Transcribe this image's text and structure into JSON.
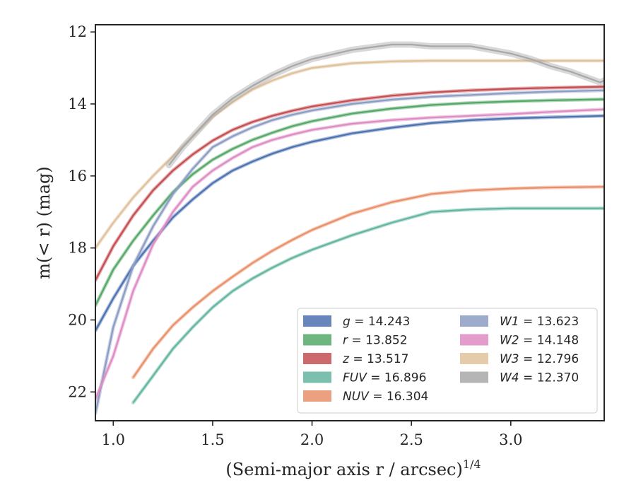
{
  "chart_data": {
    "type": "line",
    "xlabel": "(Semi-major axis r / arcsec)",
    "xlabel_sup": "1/4",
    "ylabel": "m(< r) (mag)",
    "xlim": [
      0.91,
      3.47
    ],
    "ylim": [
      22.8,
      11.8
    ],
    "y_inverted": true,
    "x_ticks": [
      "1.0",
      "1.5",
      "2.0",
      "2.5",
      "3.0"
    ],
    "y_ticks": [
      "12",
      "14",
      "16",
      "18",
      "20",
      "22"
    ],
    "legend_position": "lower-right",
    "legend_columns": 2,
    "series": [
      {
        "name": "g",
        "value": "14.243",
        "color": "#4c72b0",
        "x": [
          0.91,
          1.0,
          1.1,
          1.2,
          1.3,
          1.4,
          1.5,
          1.6,
          1.7,
          1.8,
          1.9,
          2.0,
          2.2,
          2.4,
          2.6,
          2.8,
          3.0,
          3.2,
          3.47
        ],
        "y": [
          20.3,
          19.4,
          18.5,
          17.8,
          17.15,
          16.65,
          16.2,
          15.85,
          15.6,
          15.38,
          15.2,
          15.05,
          14.82,
          14.66,
          14.53,
          14.45,
          14.4,
          14.37,
          14.33
        ]
      },
      {
        "name": "r",
        "value": "13.852",
        "color": "#55a868",
        "x": [
          0.91,
          1.0,
          1.1,
          1.2,
          1.3,
          1.4,
          1.5,
          1.6,
          1.7,
          1.8,
          1.9,
          2.0,
          2.2,
          2.4,
          2.6,
          2.8,
          3.0,
          3.2,
          3.47
        ],
        "y": [
          19.6,
          18.6,
          17.8,
          17.1,
          16.45,
          15.95,
          15.55,
          15.25,
          15.0,
          14.8,
          14.62,
          14.48,
          14.27,
          14.13,
          14.03,
          13.97,
          13.93,
          13.9,
          13.87
        ]
      },
      {
        "name": "z",
        "value": "13.517",
        "color": "#c44e52",
        "x": [
          0.91,
          1.0,
          1.1,
          1.2,
          1.3,
          1.4,
          1.5,
          1.6,
          1.7,
          1.8,
          1.9,
          2.0,
          2.2,
          2.4,
          2.6,
          2.8,
          3.0,
          3.2,
          3.47
        ],
        "y": [
          18.9,
          17.95,
          17.1,
          16.4,
          15.85,
          15.4,
          15.02,
          14.72,
          14.5,
          14.33,
          14.19,
          14.07,
          13.9,
          13.77,
          13.68,
          13.62,
          13.58,
          13.55,
          13.52
        ]
      },
      {
        "name": "FUV",
        "value": "16.896",
        "color": "#64b5a0",
        "x": [
          1.1,
          1.2,
          1.3,
          1.4,
          1.5,
          1.6,
          1.7,
          1.8,
          1.9,
          2.0,
          2.2,
          2.4,
          2.6,
          2.8,
          3.0,
          3.2,
          3.47
        ],
        "y": [
          22.3,
          21.55,
          20.8,
          20.2,
          19.65,
          19.2,
          18.85,
          18.55,
          18.28,
          18.05,
          17.65,
          17.3,
          17.0,
          16.93,
          16.9,
          16.9,
          16.9
        ]
      },
      {
        "name": "NUV",
        "value": "16.304",
        "color": "#e8906a",
        "x": [
          1.1,
          1.2,
          1.3,
          1.4,
          1.5,
          1.6,
          1.7,
          1.8,
          1.9,
          2.0,
          2.2,
          2.4,
          2.6,
          2.8,
          3.0,
          3.2,
          3.47
        ],
        "y": [
          21.6,
          20.8,
          20.15,
          19.65,
          19.2,
          18.8,
          18.42,
          18.08,
          17.78,
          17.5,
          17.05,
          16.73,
          16.5,
          16.4,
          16.35,
          16.32,
          16.3
        ]
      },
      {
        "name": "W1",
        "value": "13.623",
        "color": "#8c9dc4",
        "x": [
          0.91,
          1.0,
          1.1,
          1.2,
          1.3,
          1.4,
          1.5,
          1.6,
          1.7,
          1.8,
          1.9,
          2.0,
          2.2,
          2.4,
          2.6,
          2.8,
          3.0,
          3.2,
          3.47
        ],
        "y": [
          22.6,
          20.2,
          18.5,
          17.4,
          16.5,
          15.8,
          15.2,
          14.9,
          14.65,
          14.45,
          14.3,
          14.18,
          14.0,
          13.88,
          13.8,
          13.75,
          13.7,
          13.66,
          13.62
        ]
      },
      {
        "name": "W2",
        "value": "14.148",
        "color": "#dd8cc4",
        "x": [
          0.91,
          1.0,
          1.1,
          1.2,
          1.3,
          1.4,
          1.5,
          1.6,
          1.7,
          1.8,
          1.9,
          2.0,
          2.2,
          2.4,
          2.6,
          2.8,
          3.0,
          3.2,
          3.47
        ],
        "y": [
          22.2,
          21.0,
          19.2,
          17.9,
          17.0,
          16.3,
          15.85,
          15.5,
          15.2,
          15.0,
          14.85,
          14.72,
          14.55,
          14.45,
          14.38,
          14.33,
          14.28,
          14.22,
          14.15
        ]
      },
      {
        "name": "W3",
        "value": "12.796",
        "color": "#dfc29b",
        "x": [
          0.91,
          1.0,
          1.1,
          1.2,
          1.3,
          1.4,
          1.5,
          1.6,
          1.7,
          1.8,
          1.9,
          2.0,
          2.2,
          2.4,
          2.6,
          2.8,
          3.0,
          3.2,
          3.47
        ],
        "y": [
          18.0,
          17.3,
          16.6,
          16.0,
          15.45,
          14.9,
          14.35,
          13.95,
          13.6,
          13.35,
          13.15,
          13.0,
          12.87,
          12.82,
          12.8,
          12.8,
          12.8,
          12.8,
          12.8
        ]
      },
      {
        "name": "W4",
        "value": "12.370",
        "color": "#a8a8a8",
        "x": [
          1.28,
          1.35,
          1.4,
          1.5,
          1.6,
          1.7,
          1.8,
          1.9,
          2.0,
          2.2,
          2.4,
          2.5,
          2.6,
          2.8,
          3.0,
          3.1,
          3.2,
          3.3,
          3.35,
          3.4,
          3.45,
          3.47
        ],
        "y": [
          15.7,
          15.2,
          14.9,
          14.3,
          13.85,
          13.5,
          13.2,
          12.95,
          12.75,
          12.5,
          12.35,
          12.35,
          12.4,
          12.4,
          12.6,
          12.75,
          12.95,
          13.1,
          13.2,
          13.3,
          13.4,
          13.35
        ]
      }
    ]
  }
}
